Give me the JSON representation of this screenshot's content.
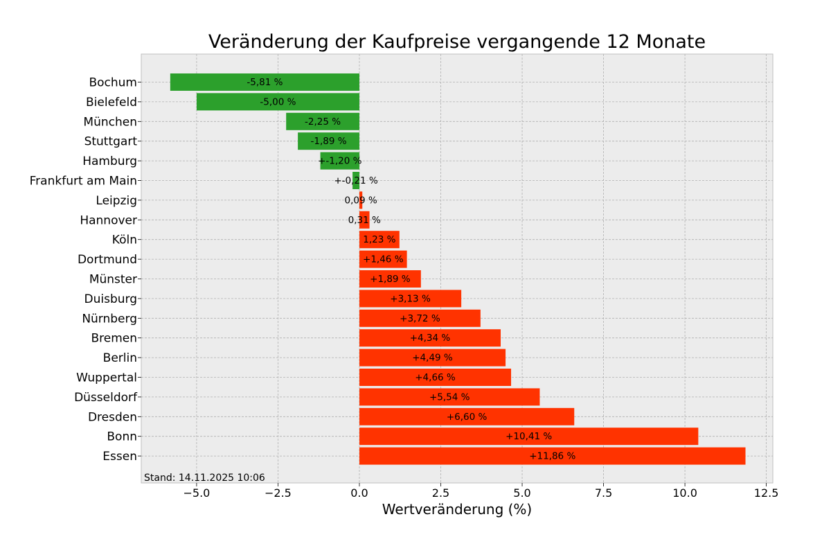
{
  "chart_data": {
    "type": "bar",
    "orientation": "horizontal",
    "title": "Veränderung der Kaufpreise vergangende 12 Monate",
    "xlabel": "Wertveränderung (%)",
    "ylabel": "",
    "xlim": [
      -6.7,
      12.7
    ],
    "grid": true,
    "xticks": [
      -5.0,
      -2.5,
      0.0,
      2.5,
      5.0,
      7.5,
      10.0,
      12.5
    ],
    "xtick_labels": [
      "−5.0",
      "−2.5",
      "0.0",
      "2.5",
      "5.0",
      "7.5",
      "10.0",
      "12.5"
    ],
    "categories": [
      "Bochum",
      "Bielefeld",
      "München",
      "Stuttgart",
      "Hamburg",
      "Frankfurt am Main",
      "Leipzig",
      "Hannover",
      "Köln",
      "Dortmund",
      "Münster",
      "Duisburg",
      "Nürnberg",
      "Bremen",
      "Berlin",
      "Wuppertal",
      "Düsseldorf",
      "Dresden",
      "Bonn",
      "Essen"
    ],
    "values": [
      -5.81,
      -5.0,
      -2.25,
      -1.89,
      -1.2,
      -0.21,
      0.09,
      0.31,
      1.23,
      1.46,
      1.89,
      3.13,
      3.72,
      4.34,
      4.49,
      4.66,
      5.54,
      6.6,
      10.41,
      11.86
    ],
    "data_labels": [
      "-5,81 %",
      "-5,00 %",
      "-2,25 %",
      "-1,89 %",
      "+-1,20 %",
      "+-0,21 %",
      "0,09 %",
      "0,31 %",
      "1,23 %",
      "+1,46 %",
      "+1,89 %",
      "+3,13 %",
      "+3,72 %",
      "+4,34 %",
      "+4,49 %",
      "+4,66 %",
      "+5,54 %",
      "+6,60 %",
      "+10,41 %",
      "+11,86 %"
    ],
    "colors": {
      "negative": "#2ca02c",
      "positive": "#ff3300",
      "plot_background": "#ececec",
      "axes_edge": "#bfbfbf"
    },
    "annotation": "Stand: 14.11.2025 10:06"
  }
}
